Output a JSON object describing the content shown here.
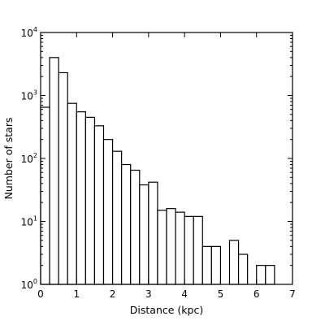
{
  "chart_data": {
    "type": "bar",
    "title": "",
    "xlabel": "Distance (kpc)",
    "ylabel": "Number of stars",
    "xlim": [
      0,
      7
    ],
    "ylim": [
      1,
      10000
    ],
    "yscale": "log",
    "x_ticks": [
      0,
      1,
      2,
      3,
      4,
      5,
      6,
      7
    ],
    "x_tick_labels": [
      "0",
      "1",
      "2",
      "3",
      "4",
      "5",
      "6",
      "7"
    ],
    "y_ticks": [
      1,
      10,
      100,
      1000,
      10000
    ],
    "y_tick_labels": [
      {
        "base": "10",
        "exp": "0"
      },
      {
        "base": "10",
        "exp": "1"
      },
      {
        "base": "10",
        "exp": "2"
      },
      {
        "base": "10",
        "exp": "3"
      },
      {
        "base": "10",
        "exp": "4"
      }
    ],
    "bin_width": 0.25,
    "bins": [
      {
        "x0": 0.0,
        "x1": 0.25,
        "count": 650
      },
      {
        "x0": 0.25,
        "x1": 0.5,
        "count": 4000
      },
      {
        "x0": 0.5,
        "x1": 0.75,
        "count": 2300
      },
      {
        "x0": 0.75,
        "x1": 1.0,
        "count": 750
      },
      {
        "x0": 1.0,
        "x1": 1.25,
        "count": 550
      },
      {
        "x0": 1.25,
        "x1": 1.5,
        "count": 450
      },
      {
        "x0": 1.5,
        "x1": 1.75,
        "count": 330
      },
      {
        "x0": 1.75,
        "x1": 2.0,
        "count": 200
      },
      {
        "x0": 2.0,
        "x1": 2.25,
        "count": 130
      },
      {
        "x0": 2.25,
        "x1": 2.5,
        "count": 80
      },
      {
        "x0": 2.5,
        "x1": 2.75,
        "count": 65
      },
      {
        "x0": 2.75,
        "x1": 3.0,
        "count": 38
      },
      {
        "x0": 3.0,
        "x1": 3.25,
        "count": 42
      },
      {
        "x0": 3.25,
        "x1": 3.5,
        "count": 15
      },
      {
        "x0": 3.5,
        "x1": 3.75,
        "count": 16
      },
      {
        "x0": 3.75,
        "x1": 4.0,
        "count": 14
      },
      {
        "x0": 4.0,
        "x1": 4.25,
        "count": 12
      },
      {
        "x0": 4.25,
        "x1": 4.5,
        "count": 12
      },
      {
        "x0": 4.5,
        "x1": 4.75,
        "count": 4
      },
      {
        "x0": 4.75,
        "x1": 5.0,
        "count": 4
      },
      {
        "x0": 5.25,
        "x1": 5.5,
        "count": 5
      },
      {
        "x0": 5.5,
        "x1": 5.75,
        "count": 3
      },
      {
        "x0": 6.0,
        "x1": 6.25,
        "count": 2
      },
      {
        "x0": 6.25,
        "x1": 6.5,
        "count": 2
      }
    ],
    "grid": false,
    "colors": {
      "bar_fill": "#ffffff",
      "bar_edge": "#000000",
      "axes": "#000000"
    }
  }
}
